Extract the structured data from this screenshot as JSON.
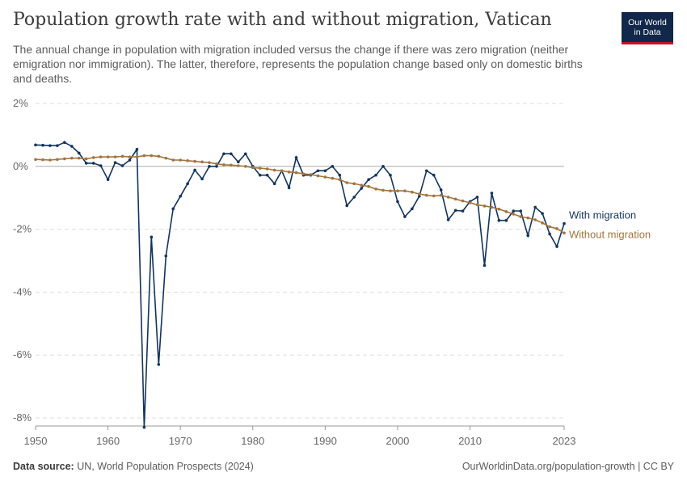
{
  "header": {
    "title": "Population growth rate with and without migration, Vatican",
    "subtitle": "The annual change in population with migration included versus the change if there was zero migration (neither emigration nor immigration). The latter, therefore, represents the population change based only on domestic births and deaths.",
    "logo_line1": "Our World",
    "logo_line2": "in Data"
  },
  "footer": {
    "source_label": "Data source:",
    "source_text": "UN, World Population Prospects (2024)",
    "url": "OurWorldinData.org/population-growth | CC BY"
  },
  "colors": {
    "with_migration": "#12345e",
    "without_migration": "#a2753e",
    "grid": "#dddddd",
    "zero_line": "#aaaaaa"
  },
  "chart_data": {
    "type": "line",
    "xlim": [
      1950,
      2023
    ],
    "ylim": [
      -8,
      2
    ],
    "unit": "%",
    "x_ticks": [
      "1950",
      "1960",
      "1970",
      "1980",
      "1990",
      "2000",
      "2010",
      "2023"
    ],
    "x_tick_values": [
      1950,
      1960,
      1970,
      1980,
      1990,
      2000,
      2010,
      2023
    ],
    "y_ticks": [
      "2%",
      "0%",
      "-2%",
      "-4%",
      "-6%",
      "-8%"
    ],
    "y_tick_values": [
      2,
      0,
      -2,
      -4,
      -6,
      -8
    ],
    "grid": true,
    "series": [
      {
        "name": "With migration",
        "color": "#12345e",
        "x_start": 1950,
        "values": [
          0.68,
          0.67,
          0.66,
          0.66,
          0.76,
          0.64,
          0.42,
          0.1,
          0.1,
          0.02,
          -0.42,
          0.12,
          0.02,
          0.2,
          0.54,
          -8.3,
          -2.25,
          -6.3,
          -2.85,
          -1.35,
          -0.95,
          -0.55,
          -0.12,
          -0.4,
          0.0,
          0.0,
          0.4,
          0.4,
          0.14,
          0.4,
          0.0,
          -0.28,
          -0.28,
          -0.55,
          -0.14,
          -0.68,
          0.28,
          -0.28,
          -0.28,
          -0.14,
          -0.14,
          0.0,
          -0.28,
          -1.25,
          -0.98,
          -0.7,
          -0.42,
          -0.28,
          0.0,
          -0.28,
          -1.12,
          -1.6,
          -1.35,
          -0.95,
          -0.14,
          -0.28,
          -0.75,
          -1.7,
          -1.4,
          -1.42,
          -1.12,
          -0.98,
          -3.15,
          -0.85,
          -1.72,
          -1.72,
          -1.42,
          -1.42,
          -2.2,
          -1.3,
          -1.5,
          -2.15,
          -2.55,
          -1.82
        ]
      },
      {
        "name": "Without migration",
        "color": "#a2753e",
        "x_start": 1950,
        "values": [
          0.22,
          0.21,
          0.2,
          0.22,
          0.24,
          0.26,
          0.26,
          0.24,
          0.28,
          0.3,
          0.3,
          0.3,
          0.32,
          0.3,
          0.3,
          0.34,
          0.34,
          0.32,
          0.26,
          0.2,
          0.2,
          0.18,
          0.16,
          0.14,
          0.12,
          0.08,
          0.05,
          0.04,
          0.02,
          0.0,
          -0.04,
          -0.06,
          -0.08,
          -0.12,
          -0.14,
          -0.18,
          -0.2,
          -0.24,
          -0.26,
          -0.3,
          -0.34,
          -0.38,
          -0.42,
          -0.52,
          -0.55,
          -0.6,
          -0.64,
          -0.72,
          -0.76,
          -0.78,
          -0.78,
          -0.78,
          -0.82,
          -0.88,
          -0.92,
          -0.94,
          -0.92,
          -0.98,
          -1.04,
          -1.1,
          -1.16,
          -1.22,
          -1.26,
          -1.3,
          -1.36,
          -1.44,
          -1.52,
          -1.6,
          -1.64,
          -1.7,
          -1.8,
          -1.92,
          -1.98,
          -2.12
        ]
      }
    ]
  }
}
